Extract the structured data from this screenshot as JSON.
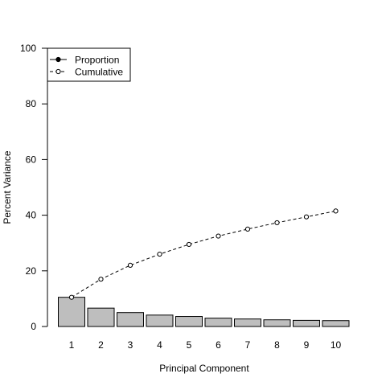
{
  "chart_data": {
    "type": "bar",
    "title": "",
    "xlabel": "Principal Component",
    "ylabel": "Percent Variance",
    "ylim": [
      0,
      100
    ],
    "yticks": [
      "0",
      "20",
      "40",
      "60",
      "80",
      "100"
    ],
    "categories": [
      "1",
      "2",
      "3",
      "4",
      "5",
      "6",
      "7",
      "8",
      "9",
      "10"
    ],
    "series": [
      {
        "name": "Proportion",
        "kind": "bar",
        "color": "#bebebe",
        "values": [
          10.5,
          6.6,
          5.0,
          4.1,
          3.6,
          3.0,
          2.7,
          2.4,
          2.2,
          2.1
        ]
      },
      {
        "name": "Cumulative",
        "kind": "line-dashed-open-points",
        "color": "#000000",
        "values": [
          10.5,
          17.0,
          22.0,
          26.0,
          29.5,
          32.5,
          35.0,
          37.3,
          39.4,
          41.5
        ]
      }
    ],
    "legend": {
      "position": "top-left",
      "entries": [
        {
          "label": "Proportion",
          "marker": "filled-circle",
          "line": "solid"
        },
        {
          "label": "Cumulative",
          "marker": "open-circle",
          "line": "dashed"
        }
      ]
    },
    "grid": false
  }
}
